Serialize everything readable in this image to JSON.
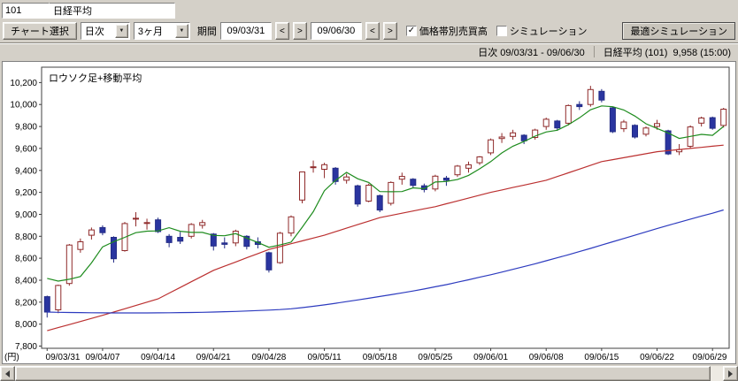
{
  "header": {
    "code_value": "101",
    "name_value": "日経平均"
  },
  "toolbar": {
    "chart_select": "チャート選択",
    "interval": "日次",
    "range": "3ヶ月",
    "dropdown_glyph": "▼",
    "period_label": "期間",
    "date_from": "09/03/31",
    "date_to": "09/06/30",
    "prev_label": "<",
    "next_label": ">",
    "volume_by_price": "価格帯別売買高",
    "volume_by_price_check": "✓",
    "simulation": "シミュレーション",
    "simulation_check": "",
    "optimal_simulation": "最適シミュレーション"
  },
  "status": {
    "range_text": "日次 09/03/31 - 09/06/30",
    "quote_text": "日経平均 (101)  9,958 (15:00)"
  },
  "chart_data": {
    "type": "candlestick",
    "title": "ロウソク足+移動平均",
    "ylabel": "(円)",
    "unit_label": "(円)",
    "ylim": [
      7780,
      10340
    ],
    "yticks": [
      7800,
      8000,
      8200,
      8400,
      8600,
      8800,
      9000,
      9200,
      9400,
      9600,
      9800,
      10000,
      10200
    ],
    "xtick_indices": [
      0,
      5,
      10,
      15,
      20,
      25,
      30,
      35,
      40,
      45,
      50,
      55,
      60
    ],
    "xtick_labels": [
      "09/03/31",
      "09/04/07",
      "09/04/14",
      "09/04/21",
      "09/04/28",
      "09/05/11",
      "09/05/18",
      "09/05/25",
      "09/06/01",
      "09/06/08",
      "09/06/15",
      "09/06/22",
      "09/06/29"
    ],
    "colors": {
      "up_fill": "#ffffff",
      "up_stroke": "#8f2a2a",
      "down_fill": "#2a35a0",
      "down_stroke": "#232c86",
      "frame": "#404040"
    },
    "ohlc": [
      [
        8250,
        8260,
        8060,
        8110
      ],
      [
        8130,
        8360,
        8100,
        8352
      ],
      [
        8370,
        8730,
        8350,
        8720
      ],
      [
        8680,
        8780,
        8650,
        8750
      ],
      [
        8810,
        8880,
        8770,
        8858
      ],
      [
        8880,
        8900,
        8810,
        8833
      ],
      [
        8790,
        8800,
        8560,
        8595
      ],
      [
        8670,
        8930,
        8660,
        8916
      ],
      [
        8960,
        9020,
        8890,
        8964
      ],
      [
        8920,
        8960,
        8860,
        8925
      ],
      [
        8950,
        8970,
        8830,
        8843
      ],
      [
        8800,
        8820,
        8700,
        8743
      ],
      [
        8790,
        8840,
        8730,
        8755
      ],
      [
        8800,
        8920,
        8780,
        8908
      ],
      [
        8900,
        8950,
        8870,
        8925
      ],
      [
        8820,
        8830,
        8670,
        8711
      ],
      [
        8740,
        8790,
        8690,
        8727
      ],
      [
        8740,
        8860,
        8710,
        8847
      ],
      [
        8800,
        8810,
        8680,
        8708
      ],
      [
        8750,
        8790,
        8690,
        8726
      ],
      [
        8650,
        8660,
        8470,
        8494
      ],
      [
        8560,
        8840,
        8550,
        8828
      ],
      [
        8830,
        8990,
        8800,
        8977
      ],
      [
        9130,
        9390,
        9100,
        9386
      ],
      [
        9430,
        9490,
        9380,
        9433
      ],
      [
        9410,
        9470,
        9330,
        9452
      ],
      [
        9420,
        9430,
        9270,
        9299
      ],
      [
        9310,
        9370,
        9280,
        9340
      ],
      [
        9260,
        9270,
        9070,
        9094
      ],
      [
        9120,
        9280,
        9110,
        9265
      ],
      [
        9170,
        9180,
        9020,
        9039
      ],
      [
        9100,
        9300,
        9080,
        9290
      ],
      [
        9320,
        9380,
        9270,
        9345
      ],
      [
        9320,
        9330,
        9240,
        9264
      ],
      [
        9260,
        9280,
        9200,
        9226
      ],
      [
        9230,
        9360,
        9210,
        9347
      ],
      [
        9330,
        9350,
        9260,
        9311
      ],
      [
        9360,
        9450,
        9340,
        9439
      ],
      [
        9420,
        9480,
        9380,
        9451
      ],
      [
        9470,
        9530,
        9450,
        9523
      ],
      [
        9560,
        9690,
        9540,
        9678
      ],
      [
        9690,
        9740,
        9650,
        9704
      ],
      [
        9710,
        9770,
        9680,
        9742
      ],
      [
        9720,
        9730,
        9640,
        9669
      ],
      [
        9700,
        9780,
        9680,
        9768
      ],
      [
        9800,
        9880,
        9770,
        9866
      ],
      [
        9850,
        9860,
        9760,
        9787
      ],
      [
        9830,
        10000,
        9810,
        9991
      ],
      [
        10000,
        10030,
        9950,
        9981
      ],
      [
        10000,
        10170,
        9980,
        10136
      ],
      [
        10120,
        10140,
        10020,
        10040
      ],
      [
        9970,
        9980,
        9740,
        9753
      ],
      [
        9780,
        9860,
        9750,
        9841
      ],
      [
        9810,
        9820,
        9690,
        9704
      ],
      [
        9730,
        9800,
        9710,
        9786
      ],
      [
        9800,
        9860,
        9770,
        9826
      ],
      [
        9760,
        9770,
        9540,
        9550
      ],
      [
        9570,
        9640,
        9540,
        9590
      ],
      [
        9620,
        9810,
        9600,
        9796
      ],
      [
        9830,
        9890,
        9800,
        9877
      ],
      [
        9880,
        9890,
        9770,
        9783
      ],
      [
        9810,
        9970,
        9790,
        9958
      ]
    ],
    "series": [
      {
        "name": "moving-average-short",
        "color": "#1e8c1e",
        "values": [
          8417,
          8392,
          8409,
          8434,
          8558,
          8703,
          8751,
          8790,
          8833,
          8847,
          8849,
          8878,
          8846,
          8835,
          8835,
          8808,
          8805,
          8824,
          8784,
          8744,
          8700,
          8721,
          8747,
          8882,
          9024,
          9215,
          9309,
          9382,
          9324,
          9290,
          9207,
          9206,
          9207,
          9241,
          9233,
          9294,
          9299,
          9317,
          9355,
          9414,
          9480,
          9559,
          9620,
          9663,
          9712,
          9750,
          9766,
          9816,
          9879,
          9952,
          9987,
          9980,
          9950,
          9895,
          9825,
          9782,
          9741,
          9691,
          9710,
          9728,
          9719,
          9801
        ]
      },
      {
        "name": "moving-average-mid",
        "color": "#bb3030",
        "values": [
          7940,
          7968,
          7996,
          8024,
          8052,
          8080,
          8110,
          8140,
          8170,
          8200,
          8230,
          8282,
          8334,
          8386,
          8438,
          8490,
          8528,
          8566,
          8604,
          8642,
          8680,
          8706,
          8732,
          8758,
          8784,
          8810,
          8842,
          8874,
          8906,
          8938,
          8970,
          8990,
          9010,
          9030,
          9050,
          9070,
          9096,
          9122,
          9148,
          9174,
          9200,
          9222,
          9244,
          9266,
          9288,
          9310,
          9344,
          9378,
          9412,
          9446,
          9480,
          9498,
          9516,
          9534,
          9552,
          9570,
          9580,
          9590,
          9600,
          9610,
          9620,
          9630
        ]
      },
      {
        "name": "moving-average-long",
        "color": "#2d3bbf",
        "values": [
          8110,
          8108,
          8106,
          8105,
          8104,
          8103,
          8102,
          8102,
          8102,
          8102,
          8103,
          8104,
          8105,
          8106,
          8108,
          8110,
          8113,
          8116,
          8120,
          8124,
          8128,
          8133,
          8140,
          8150,
          8162,
          8175,
          8190,
          8205,
          8220,
          8236,
          8252,
          8268,
          8285,
          8302,
          8320,
          8340,
          8360,
          8382,
          8404,
          8427,
          8450,
          8474,
          8499,
          8524,
          8550,
          8577,
          8604,
          8632,
          8661,
          8690,
          8720,
          8750,
          8780,
          8810,
          8840,
          8870,
          8900,
          8928,
          8956,
          8984,
          9010,
          9040
        ]
      }
    ]
  }
}
